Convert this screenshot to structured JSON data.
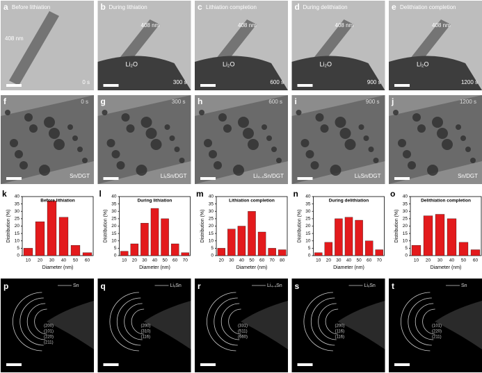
{
  "micrographs_top": [
    {
      "label": "a",
      "caption": "Before lithiation",
      "size": "408 nm",
      "time": "0 s"
    },
    {
      "label": "b",
      "caption": "During lithiation",
      "size": "408 nm",
      "phase": "Li₂O",
      "time": "300 s"
    },
    {
      "label": "c",
      "caption": "Lithiation completion",
      "size": "408 nm",
      "phase": "Li₂O",
      "time": "600 s"
    },
    {
      "label": "d",
      "caption": "During delithiation",
      "size": "408 nm",
      "phase": "Li₂O",
      "time": "900 s"
    },
    {
      "label": "e",
      "caption": "Delithiation completion",
      "size": "408 nm",
      "phase": "Li₂O",
      "time": "1200 s"
    }
  ],
  "micrographs_zoom": [
    {
      "label": "f",
      "time": "0 s",
      "phase": "Sn/DGT"
    },
    {
      "label": "g",
      "time": "300 s",
      "phase": "LiₓSn/DGT"
    },
    {
      "label": "h",
      "time": "600 s",
      "phase": "Li₄.₄Sn/DGT"
    },
    {
      "label": "i",
      "time": "900 s",
      "phase": "LiₓSn/DGT"
    },
    {
      "label": "j",
      "time": "1200 s",
      "phase": "Sn/DGT"
    }
  ],
  "diffraction": [
    {
      "label": "p",
      "phase": "Sn",
      "rings": [
        "(200)",
        "(101)",
        "(220)",
        "(211)"
      ]
    },
    {
      "label": "q",
      "phase": "LiₓSn",
      "rings": [
        "(200)",
        "(310)",
        "(116)"
      ]
    },
    {
      "label": "r",
      "phase": "Li₄.₄Sn",
      "rings": [
        "(331)",
        "(511)",
        "(660)"
      ]
    },
    {
      "label": "s",
      "phase": "LiₓSn",
      "rings": [
        "(200)",
        "(116)",
        "(116)"
      ]
    },
    {
      "label": "t",
      "phase": "Sn",
      "rings": [
        "(101)",
        "(220)",
        "(211)"
      ]
    }
  ],
  "chart_data": [
    {
      "type": "bar",
      "panel": "k",
      "title": "Before lithiation",
      "x_label": "Diameter (nm)",
      "y_label": "Distribution (%)",
      "color": "#e31a1c",
      "categories": [
        "10",
        "20",
        "30",
        "40",
        "50",
        "60"
      ],
      "values": [
        5,
        23,
        37,
        26,
        7,
        2
      ],
      "ylim": [
        0,
        40
      ],
      "yticks": [
        0,
        5,
        10,
        15,
        20,
        25,
        30,
        35,
        40
      ]
    },
    {
      "type": "bar",
      "panel": "l",
      "title": "During lithiation",
      "x_label": "Diameter (nm)",
      "y_label": "Distribution (%)",
      "color": "#e31a1c",
      "categories": [
        "10",
        "20",
        "30",
        "40",
        "50",
        "60",
        "70"
      ],
      "values": [
        3,
        8,
        22,
        32,
        25,
        8,
        2
      ],
      "ylim": [
        0,
        40
      ],
      "yticks": [
        0,
        5,
        10,
        15,
        20,
        25,
        30,
        35,
        40
      ]
    },
    {
      "type": "bar",
      "panel": "m",
      "title": "Lithiation completion",
      "x_label": "Diameter (nm)",
      "y_label": "Distribution (%)",
      "color": "#e31a1c",
      "categories": [
        "20",
        "30",
        "40",
        "50",
        "60",
        "70",
        "80"
      ],
      "values": [
        5,
        18,
        20,
        30,
        16,
        5,
        4
      ],
      "ylim": [
        0,
        40
      ],
      "yticks": [
        0,
        5,
        10,
        15,
        20,
        25,
        30,
        35,
        40
      ]
    },
    {
      "type": "bar",
      "panel": "n",
      "title": "During delithiation",
      "x_label": "Diameter (nm)",
      "y_label": "Distribution (%)",
      "color": "#e31a1c",
      "categories": [
        "10",
        "20",
        "30",
        "40",
        "50",
        "60",
        "70"
      ],
      "values": [
        2,
        9,
        25,
        26,
        24,
        10,
        4
      ],
      "ylim": [
        0,
        40
      ],
      "yticks": [
        0,
        5,
        10,
        15,
        20,
        25,
        30,
        35,
        40
      ]
    },
    {
      "type": "bar",
      "panel": "o",
      "title": "Delithiation completion",
      "x_label": "Diameter (nm)",
      "y_label": "Distribution (%)",
      "color": "#e31a1c",
      "categories": [
        "10",
        "20",
        "30",
        "40",
        "50",
        "60"
      ],
      "values": [
        7,
        27,
        28,
        25,
        9,
        4
      ],
      "ylim": [
        0,
        40
      ],
      "yticks": [
        0,
        5,
        10,
        15,
        20,
        25,
        30,
        35,
        40
      ]
    }
  ]
}
